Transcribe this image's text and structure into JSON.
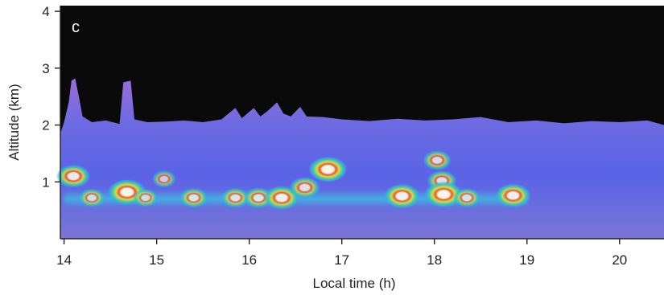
{
  "chart_data": {
    "type": "heatmap",
    "panel_label": "c",
    "xlabel": "Local time (h)",
    "ylabel": "Altitude (km)",
    "xlim": [
      13.96,
      20.48
    ],
    "ylim": [
      0.0,
      4.1
    ],
    "x_ticks": [
      "14",
      "15",
      "16",
      "17",
      "18",
      "19",
      "20"
    ],
    "y_ticks": [
      "1",
      "2",
      "3",
      "4"
    ],
    "colors": {
      "background": "#0b0a0a",
      "boundary_layer": "#8a63d8",
      "layer_mid": "#5a64e8",
      "layer_low": "#6e86dc",
      "band": "#32b6e4",
      "hot_1": "#43d29b",
      "hot_2": "#e5d648",
      "hot_3": "#e05a2c",
      "core": "#fbf6e8"
    },
    "boundary_layer_top": [
      {
        "x": 13.96,
        "y": 1.85
      },
      {
        "x": 14.0,
        "y": 2.05
      },
      {
        "x": 14.05,
        "y": 2.4
      },
      {
        "x": 14.08,
        "y": 2.78
      },
      {
        "x": 14.12,
        "y": 2.82
      },
      {
        "x": 14.16,
        "y": 2.5
      },
      {
        "x": 14.2,
        "y": 2.15
      },
      {
        "x": 14.3,
        "y": 2.05
      },
      {
        "x": 14.45,
        "y": 2.08
      },
      {
        "x": 14.6,
        "y": 2.02
      },
      {
        "x": 14.64,
        "y": 2.75
      },
      {
        "x": 14.72,
        "y": 2.78
      },
      {
        "x": 14.76,
        "y": 2.1
      },
      {
        "x": 14.9,
        "y": 2.05
      },
      {
        "x": 15.1,
        "y": 2.06
      },
      {
        "x": 15.3,
        "y": 2.08
      },
      {
        "x": 15.5,
        "y": 2.05
      },
      {
        "x": 15.7,
        "y": 2.1
      },
      {
        "x": 15.85,
        "y": 2.3
      },
      {
        "x": 15.92,
        "y": 2.12
      },
      {
        "x": 16.05,
        "y": 2.3
      },
      {
        "x": 16.12,
        "y": 2.15
      },
      {
        "x": 16.2,
        "y": 2.25
      },
      {
        "x": 16.3,
        "y": 2.4
      },
      {
        "x": 16.37,
        "y": 2.2
      },
      {
        "x": 16.45,
        "y": 2.15
      },
      {
        "x": 16.55,
        "y": 2.32
      },
      {
        "x": 16.62,
        "y": 2.15
      },
      {
        "x": 16.8,
        "y": 2.14
      },
      {
        "x": 17.0,
        "y": 2.1
      },
      {
        "x": 17.3,
        "y": 2.07
      },
      {
        "x": 17.6,
        "y": 2.11
      },
      {
        "x": 17.9,
        "y": 2.08
      },
      {
        "x": 18.2,
        "y": 2.1
      },
      {
        "x": 18.5,
        "y": 2.14
      },
      {
        "x": 18.8,
        "y": 2.05
      },
      {
        "x": 19.1,
        "y": 2.08
      },
      {
        "x": 19.4,
        "y": 2.03
      },
      {
        "x": 19.7,
        "y": 2.07
      },
      {
        "x": 20.0,
        "y": 2.05
      },
      {
        "x": 20.3,
        "y": 2.08
      },
      {
        "x": 20.48,
        "y": 2.0
      }
    ],
    "aerosol_band": {
      "y": 0.7,
      "x_start": 14.0,
      "x_end": 19.0
    },
    "hotspots": [
      {
        "x": 14.1,
        "y": 1.1,
        "intensity": 0.8
      },
      {
        "x": 14.3,
        "y": 0.72,
        "intensity": 0.45
      },
      {
        "x": 14.68,
        "y": 0.82,
        "intensity": 1.0
      },
      {
        "x": 14.88,
        "y": 0.72,
        "intensity": 0.4
      },
      {
        "x": 15.08,
        "y": 1.05,
        "intensity": 0.35
      },
      {
        "x": 15.4,
        "y": 0.72,
        "intensity": 0.55
      },
      {
        "x": 15.85,
        "y": 0.72,
        "intensity": 0.55
      },
      {
        "x": 16.1,
        "y": 0.72,
        "intensity": 0.6
      },
      {
        "x": 16.35,
        "y": 0.72,
        "intensity": 0.85
      },
      {
        "x": 16.6,
        "y": 0.9,
        "intensity": 0.65
      },
      {
        "x": 16.85,
        "y": 1.22,
        "intensity": 1.0
      },
      {
        "x": 17.65,
        "y": 0.75,
        "intensity": 0.9
      },
      {
        "x": 18.03,
        "y": 1.38,
        "intensity": 0.55
      },
      {
        "x": 18.08,
        "y": 1.02,
        "intensity": 0.6
      },
      {
        "x": 18.1,
        "y": 0.78,
        "intensity": 1.0
      },
      {
        "x": 18.35,
        "y": 0.72,
        "intensity": 0.5
      },
      {
        "x": 18.85,
        "y": 0.76,
        "intensity": 0.85
      }
    ]
  }
}
